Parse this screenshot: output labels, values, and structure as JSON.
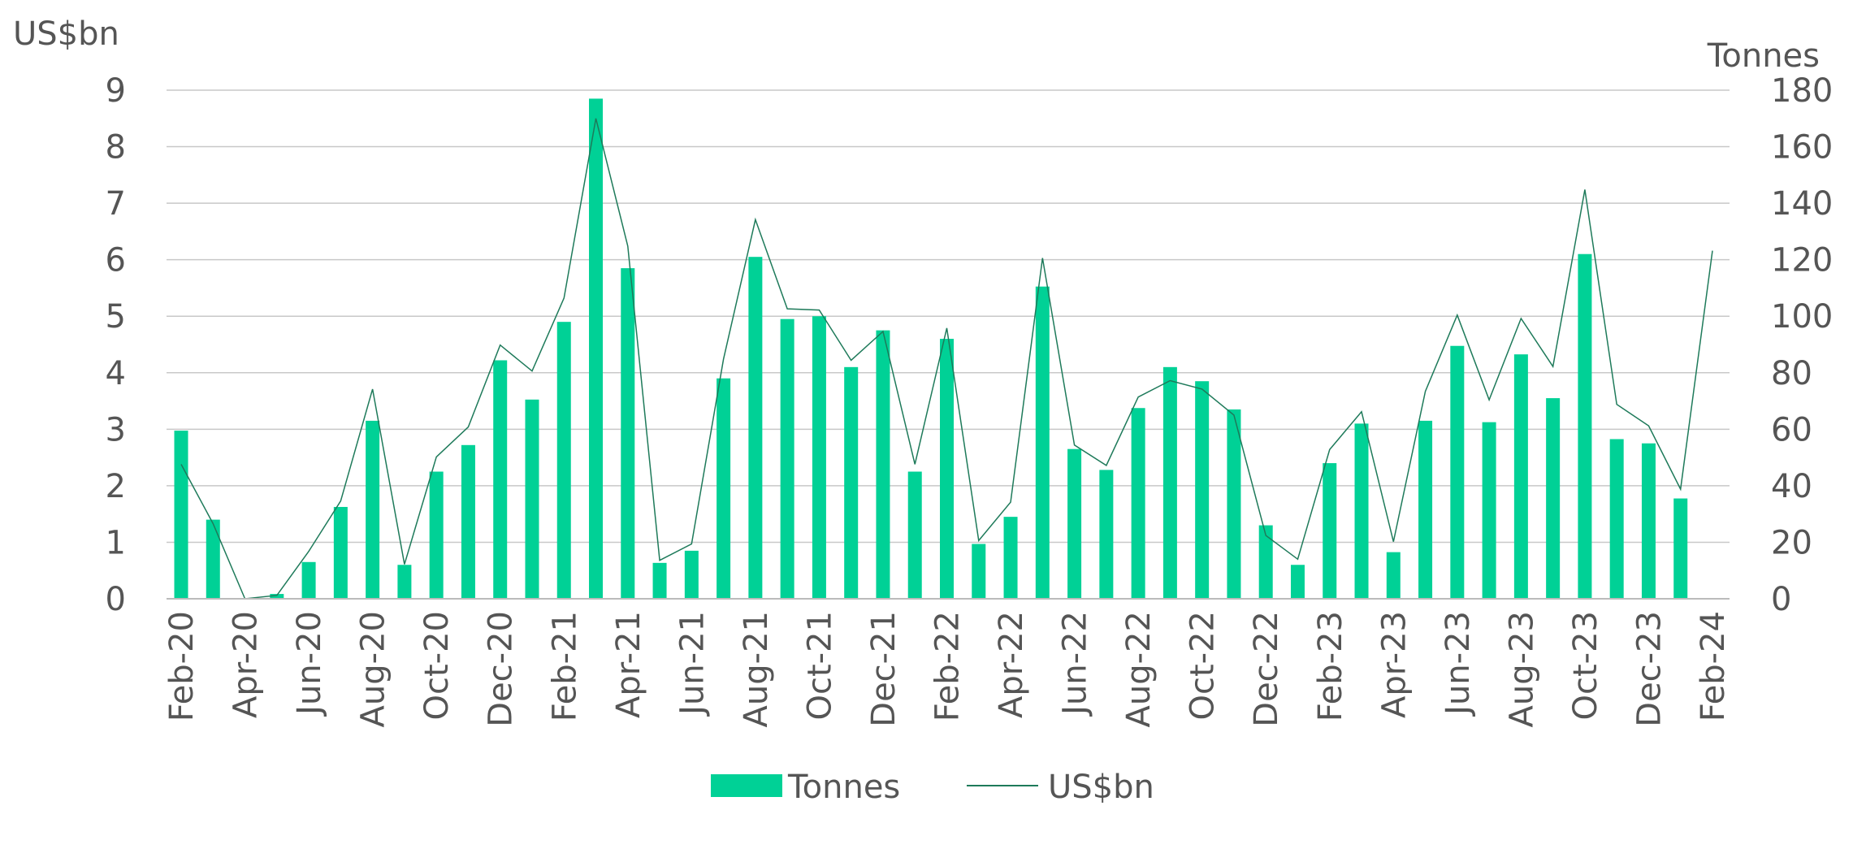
{
  "chart_data": {
    "type": "bar+line",
    "title": "",
    "left_axis": {
      "label": "US$bn",
      "ylim": [
        0,
        9
      ],
      "ticks": [
        0,
        1,
        2,
        3,
        4,
        5,
        6,
        7,
        8,
        9
      ]
    },
    "right_axis": {
      "label": "Tonnes",
      "ylim": [
        0,
        180
      ],
      "ticks": [
        0,
        20,
        40,
        60,
        80,
        100,
        120,
        140,
        160,
        180
      ]
    },
    "grid": true,
    "legend_position": "bottom",
    "colors": {
      "bars": "#00D196",
      "line": "#1E7A5A",
      "grid": "#C8C8C8"
    },
    "categories": [
      "Feb-20",
      "Mar-20",
      "Apr-20",
      "May-20",
      "Jun-20",
      "Jul-20",
      "Aug-20",
      "Sep-20",
      "Oct-20",
      "Nov-20",
      "Dec-20",
      "Jan-21",
      "Feb-21",
      "Mar-21",
      "Apr-21",
      "May-21",
      "Jun-21",
      "Jul-21",
      "Aug-21",
      "Sep-21",
      "Oct-21",
      "Nov-21",
      "Dec-21",
      "Jan-22",
      "Feb-22",
      "Mar-22",
      "Apr-22",
      "May-22",
      "Jun-22",
      "Jul-22",
      "Aug-22",
      "Sep-22",
      "Oct-22",
      "Nov-22",
      "Dec-22",
      "Jan-23",
      "Feb-23",
      "Mar-23",
      "Apr-23",
      "May-23",
      "Jun-23",
      "Jul-23",
      "Aug-23",
      "Sep-23",
      "Oct-23",
      "Nov-23",
      "Dec-23",
      "Jan-24",
      "Feb-24"
    ],
    "x_tick_labels": [
      "Feb-20",
      "Apr-20",
      "Jun-20",
      "Aug-20",
      "Oct-20",
      "Dec-20",
      "Feb-21",
      "Apr-21",
      "Jun-21",
      "Aug-21",
      "Oct-21",
      "Dec-21",
      "Feb-22",
      "Apr-22",
      "Jun-22",
      "Aug-22",
      "Oct-22",
      "Dec-22",
      "Feb-23",
      "Apr-23",
      "Jun-23",
      "Aug-23",
      "Oct-23",
      "Dec-23",
      "Feb-24"
    ],
    "series": [
      {
        "name": "Tonnes",
        "type": "bar",
        "axis": "right",
        "values": [
          59.5,
          28,
          0,
          1.7,
          13,
          32.5,
          63,
          12,
          45,
          54.4,
          84.4,
          70.5,
          98,
          177,
          117,
          12.7,
          17,
          78,
          121,
          99,
          100,
          82,
          95,
          45,
          92,
          19.4,
          29,
          110.5,
          53,
          45.6,
          67.5,
          82,
          77,
          67,
          26,
          12,
          48,
          62,
          16.5,
          63,
          89.5,
          62.5,
          86.5,
          71,
          122,
          56.5,
          55,
          35.5,
          null
        ]
      },
      {
        "name": "US$bn",
        "type": "line",
        "axis": "left",
        "values": [
          2.38,
          1.33,
          0.0,
          0.06,
          0.84,
          1.73,
          3.71,
          0.61,
          2.51,
          3.04,
          4.49,
          4.03,
          5.32,
          8.5,
          6.24,
          0.68,
          0.97,
          4.24,
          6.71,
          5.13,
          5.11,
          4.22,
          4.73,
          2.38,
          4.79,
          1.03,
          1.71,
          6.03,
          2.72,
          2.36,
          3.57,
          3.86,
          3.71,
          3.25,
          1.12,
          0.7,
          2.64,
          3.31,
          1.01,
          3.67,
          5.02,
          3.52,
          4.96,
          4.11,
          7.24,
          3.44,
          3.06,
          1.94,
          6.16
        ]
      }
    ]
  }
}
